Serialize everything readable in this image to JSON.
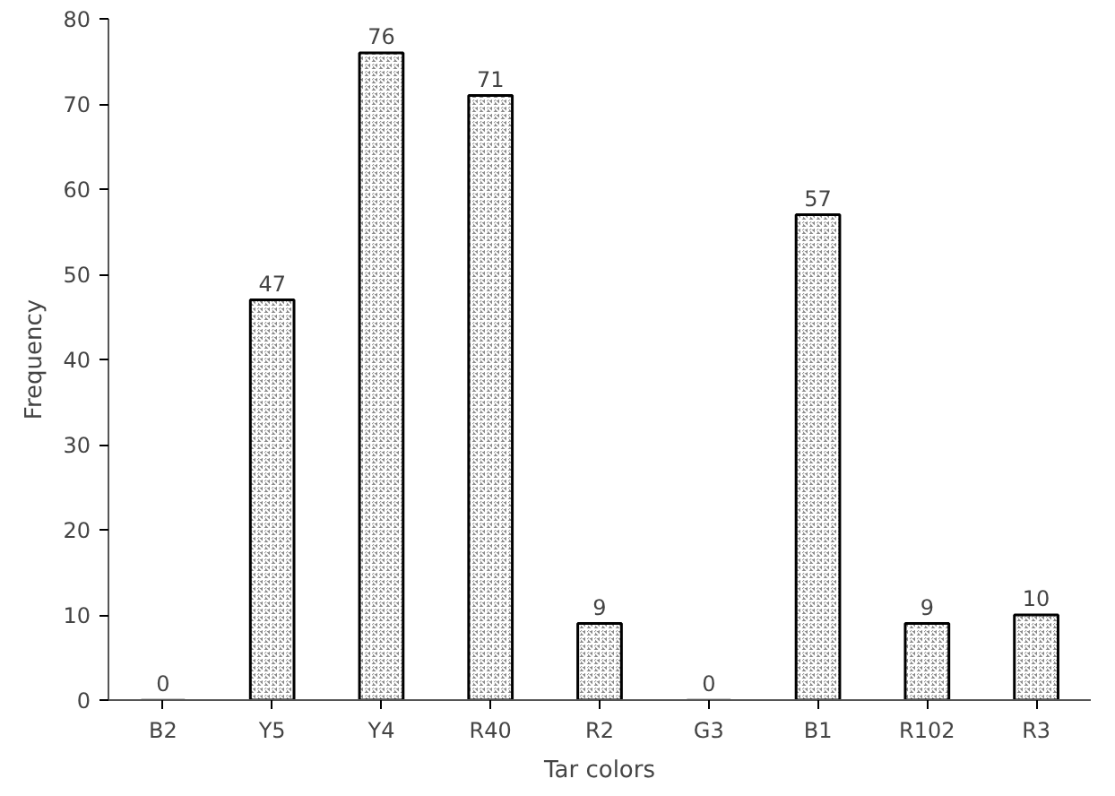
{
  "chart_data": {
    "type": "bar",
    "xlabel": "Tar colors",
    "ylabel": "Frequency",
    "categories": [
      "B2",
      "Y5",
      "Y4",
      "R40",
      "R2",
      "G3",
      "B1",
      "R102",
      "R3"
    ],
    "values": [
      0,
      47,
      76,
      71,
      9,
      0,
      57,
      9,
      10
    ],
    "color": "#8a8a8a",
    "ylim": [
      0,
      80
    ],
    "yticks": [
      0,
      10,
      20,
      30,
      40,
      50,
      60,
      70,
      80
    ],
    "data_labels": true,
    "grid": false
  }
}
